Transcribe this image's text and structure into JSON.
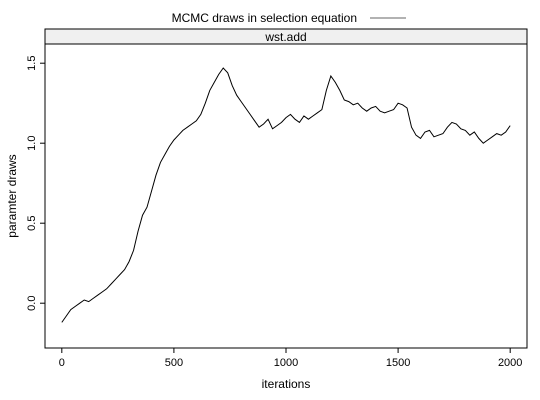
{
  "chart_data": {
    "type": "line",
    "legend": {
      "label": "MCMC draws in selection equation",
      "placement": "top-center",
      "line_color": "#666666"
    },
    "panel": {
      "strip_label": "wst.add",
      "strip_color": "#f0f0f0"
    },
    "xlabel": "iterations",
    "ylabel": "paramter draws",
    "xlim": [
      -75,
      2075
    ],
    "ylim": [
      -0.28,
      1.62
    ],
    "x_ticks": [
      0,
      500,
      1000,
      1500,
      2000
    ],
    "x_tick_labels": [
      "0",
      "500",
      "1000",
      "1500",
      "2000"
    ],
    "y_ticks": [
      0.0,
      0.5,
      1.0,
      1.5
    ],
    "y_tick_labels": [
      "0.0",
      "0.5",
      "1.0",
      "1.5"
    ],
    "line_color": "#000000",
    "grid": false,
    "series": [
      {
        "x": [
          0,
          20,
          40,
          60,
          80,
          100,
          120,
          140,
          160,
          180,
          200,
          220,
          240,
          260,
          280,
          300,
          320,
          340,
          360,
          380,
          400,
          420,
          440,
          460,
          480,
          500,
          520,
          540,
          560,
          580,
          600,
          620,
          640,
          660,
          680,
          700,
          720,
          740,
          760,
          780,
          800,
          820,
          840,
          860,
          880,
          900,
          920,
          940,
          960,
          980,
          1000,
          1020,
          1040,
          1060,
          1080,
          1100,
          1120,
          1140,
          1160,
          1180,
          1200,
          1220,
          1240,
          1260,
          1280,
          1300,
          1320,
          1340,
          1360,
          1380,
          1400,
          1420,
          1440,
          1460,
          1480,
          1500,
          1520,
          1540,
          1560,
          1580,
          1600,
          1620,
          1640,
          1660,
          1680,
          1700,
          1720,
          1740,
          1760,
          1780,
          1800,
          1820,
          1840,
          1860,
          1880,
          1900,
          1920,
          1940,
          1960,
          1980,
          2000
        ],
        "y": [
          -0.12,
          -0.08,
          -0.04,
          -0.02,
          0.0,
          0.02,
          0.01,
          0.03,
          0.05,
          0.07,
          0.09,
          0.12,
          0.15,
          0.18,
          0.21,
          0.26,
          0.33,
          0.45,
          0.55,
          0.6,
          0.7,
          0.8,
          0.88,
          0.93,
          0.98,
          1.02,
          1.05,
          1.08,
          1.1,
          1.12,
          1.14,
          1.18,
          1.25,
          1.33,
          1.38,
          1.43,
          1.47,
          1.44,
          1.36,
          1.3,
          1.26,
          1.22,
          1.18,
          1.14,
          1.1,
          1.12,
          1.15,
          1.09,
          1.11,
          1.13,
          1.16,
          1.18,
          1.15,
          1.13,
          1.17,
          1.15,
          1.17,
          1.19,
          1.21,
          1.33,
          1.42,
          1.38,
          1.33,
          1.27,
          1.26,
          1.24,
          1.25,
          1.22,
          1.2,
          1.22,
          1.23,
          1.2,
          1.19,
          1.2,
          1.21,
          1.25,
          1.24,
          1.22,
          1.1,
          1.05,
          1.03,
          1.07,
          1.08,
          1.04,
          1.05,
          1.06,
          1.1,
          1.13,
          1.12,
          1.09,
          1.08,
          1.05,
          1.07,
          1.03,
          1.0,
          1.02,
          1.04,
          1.06,
          1.05,
          1.07,
          1.11
        ]
      }
    ]
  }
}
